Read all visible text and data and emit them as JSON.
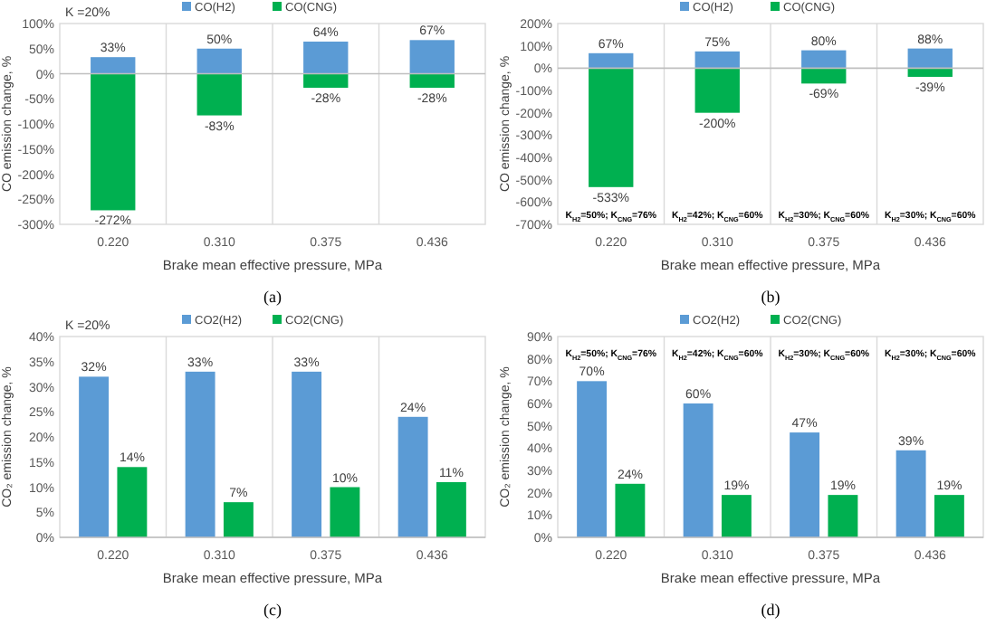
{
  "chart_data": [
    {
      "type": "bar",
      "title": "(a)",
      "xlabel": "Brake mean effective pressure, MPa",
      "ylabel": "CO emission change, %",
      "categories": [
        "0.220",
        "0.310",
        "0.375",
        "0.436"
      ],
      "stacked": true,
      "grid": "x",
      "legend": "top",
      "series": [
        {
          "name": "CO(H2)",
          "color": "#5b9bd5",
          "values": [
            33,
            50,
            64,
            67
          ],
          "value_labels": [
            "33%",
            "50%",
            "64%",
            "67%"
          ]
        },
        {
          "name": "CO(CNG)",
          "color": "#00b050",
          "values": [
            -272,
            -83,
            -28,
            -28
          ],
          "value_labels": [
            "-272%",
            "-83%",
            "-28%",
            "-28%"
          ]
        }
      ],
      "ylim": [
        -300,
        100
      ],
      "yticks": [
        {
          "value": -300,
          "label": "-300%"
        },
        {
          "value": -250,
          "label": "-250%"
        },
        {
          "value": -200,
          "label": "-200%"
        },
        {
          "value": -150,
          "label": "-150%"
        },
        {
          "value": -100,
          "label": "-100%"
        },
        {
          "value": -50,
          "label": "-50%"
        },
        {
          "value": 0,
          "label": "0%"
        },
        {
          "value": 50,
          "label": "50%"
        },
        {
          "value": 100,
          "label": "100%"
        }
      ],
      "annotations": [
        "K =20%"
      ]
    },
    {
      "type": "bar",
      "title": "(b)",
      "xlabel": "Brake mean effective pressure, MPa",
      "ylabel": "CO emission change, %",
      "categories": [
        "0.220",
        "0.310",
        "0.375",
        "0.436"
      ],
      "stacked": true,
      "grid": "x",
      "legend": "top",
      "series": [
        {
          "name": "CO(H2)",
          "color": "#5b9bd5",
          "values": [
            67,
            75,
            80,
            88
          ],
          "value_labels": [
            "67%",
            "75%",
            "80%",
            "88%"
          ]
        },
        {
          "name": "CO(CNG)",
          "color": "#00b050",
          "values": [
            -533,
            -200,
            -69,
            -39
          ],
          "value_labels": [
            "-533%",
            "-200%",
            "-69%",
            "-39%"
          ]
        }
      ],
      "ylim": [
        -700,
        200
      ],
      "yticks": [
        {
          "value": -700,
          "label": "-700%"
        },
        {
          "value": -600,
          "label": "-600%"
        },
        {
          "value": -500,
          "label": "-500%"
        },
        {
          "value": -400,
          "label": "-400%"
        },
        {
          "value": -300,
          "label": "-300%"
        },
        {
          "value": -200,
          "label": "-200%"
        },
        {
          "value": -100,
          "label": "-100%"
        },
        {
          "value": 0,
          "label": "0%"
        },
        {
          "value": 100,
          "label": "100%"
        },
        {
          "value": 200,
          "label": "200%"
        }
      ],
      "annotations": [
        "K$_{H2}$=50%; K$_{CNG}$=76%",
        "K$_{H2}$=42%; K$_{CNG}$=60%",
        "K$_{H2}$=30%; K$_{CNG}$=60%",
        "K$_{H2}$=30%; K$_{CNG}$=60%"
      ]
    },
    {
      "type": "bar",
      "title": "(c)",
      "xlabel": "Brake mean effective pressure, MPa",
      "ylabel": "CO₂ emission change, %",
      "categories": [
        "0.220",
        "0.310",
        "0.375",
        "0.436"
      ],
      "grid": "x",
      "legend": "top",
      "series": [
        {
          "name": "CO2(H2)",
          "color": "#5b9bd5",
          "values": [
            32,
            33,
            33,
            24
          ],
          "value_labels": [
            "32%",
            "33%",
            "33%",
            "24%"
          ]
        },
        {
          "name": "CO2(CNG)",
          "color": "#00b050",
          "values": [
            14,
            7,
            10,
            11
          ],
          "value_labels": [
            "14%",
            "7%",
            "10%",
            "11%"
          ]
        }
      ],
      "ylim": [
        0,
        40
      ],
      "yticks": [
        {
          "value": 0,
          "label": "0%"
        },
        {
          "value": 5,
          "label": "5%"
        },
        {
          "value": 10,
          "label": "10%"
        },
        {
          "value": 15,
          "label": "15%"
        },
        {
          "value": 20,
          "label": "20%"
        },
        {
          "value": 25,
          "label": "25%"
        },
        {
          "value": 30,
          "label": "30%"
        },
        {
          "value": 35,
          "label": "35%"
        },
        {
          "value": 40,
          "label": "40%"
        }
      ],
      "annotations": [
        "K =20%"
      ]
    },
    {
      "type": "bar",
      "title": "(d)",
      "xlabel": "Brake mean effective pressure, MPa",
      "ylabel": "CO₂ emission change, %",
      "categories": [
        "0.220",
        "0.310",
        "0.375",
        "0.436"
      ],
      "grid": "x",
      "legend": "top",
      "series": [
        {
          "name": "CO2(H2)",
          "color": "#5b9bd5",
          "values": [
            70,
            60,
            47,
            39
          ],
          "value_labels": [
            "70%",
            "60%",
            "47%",
            "39%"
          ]
        },
        {
          "name": "CO2(CNG)",
          "color": "#00b050",
          "values": [
            24,
            19,
            19,
            19
          ],
          "value_labels": [
            "24%",
            "19%",
            "19%",
            "19%"
          ]
        }
      ],
      "ylim": [
        0,
        90
      ],
      "yticks": [
        {
          "value": 0,
          "label": "0%"
        },
        {
          "value": 10,
          "label": "10%"
        },
        {
          "value": 20,
          "label": "20%"
        },
        {
          "value": 30,
          "label": "30%"
        },
        {
          "value": 40,
          "label": "40%"
        },
        {
          "value": 50,
          "label": "50%"
        },
        {
          "value": 60,
          "label": "60%"
        },
        {
          "value": 70,
          "label": "70%"
        },
        {
          "value": 80,
          "label": "80%"
        },
        {
          "value": 90,
          "label": "90%"
        }
      ],
      "annotations": [
        "K$_{H2}$=50%; K$_{CNG}$=76%",
        "K$_{H2}$=42%; K$_{CNG}$=60%",
        "K$_{H2}$=30%; K$_{CNG}$=60%",
        "K$_{H2}$=30%; K$_{CNG}$=60%"
      ]
    }
  ]
}
